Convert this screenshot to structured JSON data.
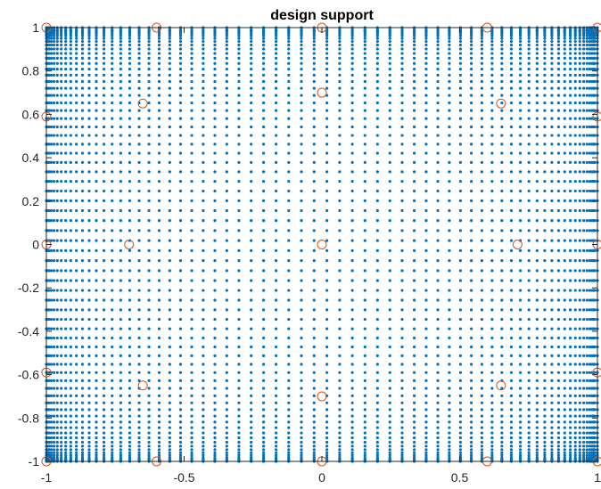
{
  "chart_data": {
    "type": "scatter",
    "title": "design support",
    "xlabel": "",
    "ylabel": "",
    "xlim": [
      -1,
      1
    ],
    "ylim": [
      -1,
      1
    ],
    "xticks": [
      -1,
      -0.5,
      0,
      0.5,
      1
    ],
    "xtick_labels": [
      "-1",
      "-0.5",
      "0",
      "0.5",
      "1"
    ],
    "yticks": [
      -1,
      -0.8,
      -0.6,
      -0.4,
      -0.2,
      0,
      0.2,
      0.4,
      0.6,
      0.8,
      1
    ],
    "ytick_labels": [
      "-1",
      "-0.8",
      "-0.6",
      "-0.4",
      "-0.2",
      "0",
      "0.2",
      "0.4",
      "0.6",
      "0.8",
      "1"
    ],
    "grid": false,
    "legend": "none",
    "series": [
      {
        "marker": "dot",
        "color": "#0072BD",
        "grid_points": {
          "coordinates": [
            -1,
            -0.9989,
            -0.9956,
            -0.9901,
            -0.9823,
            -0.9724,
            -0.9603,
            -0.9461,
            -0.9298,
            -0.9115,
            -0.8911,
            -0.8689,
            -0.8447,
            -0.8187,
            -0.7909,
            -0.7614,
            -0.7302,
            -0.6975,
            -0.6632,
            -0.6276,
            -0.5906,
            -0.5523,
            -0.5129,
            -0.4724,
            -0.4309,
            -0.3884,
            -0.3452,
            -0.3013,
            -0.2567,
            -0.2117,
            -0.1663,
            -0.1205,
            -0.0744,
            -0.0282,
            0.0182,
            0.0644,
            0.1105,
            0.1563,
            0.2017,
            0.2467,
            0.2913,
            0.3352,
            0.3784,
            0.4209,
            0.4624,
            0.5029,
            0.5423,
            0.5806,
            0.6176,
            0.6532,
            0.6875,
            0.7202,
            0.7514,
            0.7809,
            0.8087,
            0.8347,
            0.8589,
            0.8811,
            0.9015,
            0.9198,
            0.9361,
            0.9503,
            0.9624,
            0.9723,
            0.9801,
            0.9856,
            0.9889,
            0.99,
            1
          ]
        }
      },
      {
        "marker": "circle",
        "color": "#D95319",
        "x": [
          -1,
          -0.6,
          0,
          0.6,
          1,
          -0.65,
          0,
          0.65,
          -1,
          1,
          -1,
          -0.7,
          0,
          0.71,
          1,
          -1,
          1,
          -0.65,
          0,
          0.65,
          -1,
          -0.6,
          0,
          0.6,
          1
        ],
        "y": [
          1,
          1,
          1,
          1,
          1,
          0.65,
          0.7,
          0.65,
          0.59,
          0.59,
          0,
          0,
          0,
          0,
          0,
          -0.59,
          -0.59,
          -0.65,
          -0.7,
          -0.65,
          -1,
          -1,
          -1,
          -1,
          -1
        ]
      }
    ]
  }
}
